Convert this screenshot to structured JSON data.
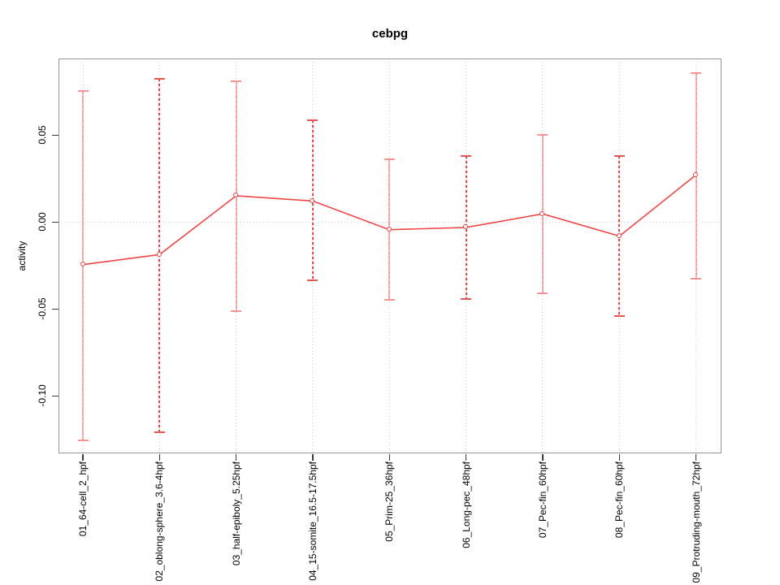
{
  "figure": {
    "title": "cebpg"
  },
  "chart_data": {
    "type": "line",
    "title": "cebpg",
    "xlabel": "",
    "ylabel": "activity",
    "categories": [
      "01_64-cell_2_hpf",
      "02_oblong-sphere_3.6-4hpf",
      "03_half-epiboly_5.25hpf",
      "04_15-somite_16.5-17.5hpf",
      "05_Prim-25_36hpf",
      "06_Long-pec_48hpf",
      "07_Pec-fin_60hpf",
      "08_Pec-fin_60hpf",
      "09_Protruding-mouth_72hpf"
    ],
    "series": [
      {
        "name": "activity",
        "values": [
          -0.0245,
          -0.0187,
          0.0151,
          0.0121,
          -0.0044,
          -0.0031,
          0.0047,
          -0.0081,
          0.0271
        ],
        "upper": [
          0.0755,
          0.0825,
          0.081,
          0.0584,
          0.0361,
          0.038,
          0.0501,
          0.038,
          0.0857
        ],
        "lower": [
          -0.1254,
          -0.121,
          -0.0514,
          -0.0335,
          -0.0447,
          -0.0444,
          -0.041,
          -0.0539,
          -0.0327
        ]
      }
    ],
    "yticks": {
      "values": [
        0.05,
        0.0,
        -0.05,
        -0.1
      ],
      "labels": [
        "0.05",
        "0.00",
        "-0.05",
        "-0.10"
      ]
    },
    "ylim": [
      -0.132,
      0.092
    ],
    "grid": {
      "vertical_at_each_category": true,
      "horizontal_at_zero": true,
      "style": "dotted"
    },
    "legend": "none",
    "marker": "open-circle",
    "error_bars": true,
    "colors": {
      "line": "#ee4747",
      "marker": "#e94545",
      "error_bar_dash": "#e14b4b",
      "error_bar_solid": "#f4a0a0",
      "error_bar_gap": "#fbdede",
      "cap_solid": "#f59393",
      "cap_dashed": "#e85555",
      "grid": "#c9c9c9",
      "axis_box": "#969696",
      "tick": "#3a3a3a",
      "text": "#000000"
    }
  }
}
